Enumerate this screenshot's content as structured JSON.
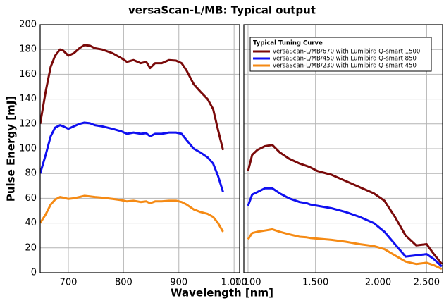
{
  "chart_data": {
    "type": "line",
    "title": "versaScan-L/MB: Typical output",
    "x_label": "Wavelength [nm]",
    "y_label": "Pulse Energy [mJ]",
    "ylim": [
      0,
      200
    ],
    "yticks": [
      0,
      20,
      40,
      60,
      80,
      100,
      120,
      140,
      160,
      180,
      200
    ],
    "grid": true,
    "legend": {
      "title": "Typical Tuning Curve",
      "position": "upper right"
    },
    "series": [
      {
        "name": "versaScan-L/MB/670 with Lumibird Q-smart 1500",
        "color": "#7a0a0a"
      },
      {
        "name": "versaScan-L/MB/450 with Lumibird Q-smart 850",
        "color": "#1010f0"
      },
      {
        "name": "versaScan-L/MB/230 with Lumibird Q-smart 450",
        "color": "#f58a14"
      }
    ],
    "panels": [
      {
        "xlim": [
          649,
          1010
        ],
        "log": false,
        "xticks": [
          700,
          800,
          900,
          {
            "value": 1000,
            "label": "1.000"
          }
        ],
        "lines": [
          {
            "x": [
              649,
              659,
              668,
              676,
              685,
              691,
              700,
              710,
              720,
              729,
              739,
              748,
              761,
              780,
              796,
              806,
              818,
              831,
              841,
              848,
              857,
              869,
              882,
              895,
              905,
              914,
              927,
              939,
              952,
              962,
              971,
              980
            ],
            "values": [
              120,
              146,
              166,
              175,
              180,
              179,
              175,
              177,
              181,
              183.5,
              183,
              181,
              180,
              177,
              173,
              170,
              171.5,
              169,
              170,
              165,
              169,
              169,
              171.5,
              171,
              169,
              163,
              152,
              146,
              140,
              132,
              115,
              99
            ]
          },
          {
            "x": [
              649,
              659,
              668,
              676,
              685,
              691,
              700,
              710,
              720,
              729,
              739,
              748,
              761,
              780,
              796,
              806,
              818,
              831,
              841,
              848,
              857,
              869,
              882,
              895,
              905,
              914,
              927,
              939,
              952,
              962,
              971,
              980
            ],
            "values": [
              80,
              95,
              110,
              117,
              119,
              118,
              116,
              118,
              120,
              121,
              120.5,
              119,
              118,
              116,
              114,
              112,
              113,
              112,
              112.5,
              110,
              112,
              112,
              113,
              113,
              112,
              107,
              100,
              97,
              93,
              88,
              78,
              65
            ]
          },
          {
            "x": [
              649,
              659,
              668,
              676,
              685,
              691,
              700,
              710,
              720,
              729,
              739,
              748,
              761,
              780,
              796,
              806,
              818,
              831,
              841,
              848,
              857,
              869,
              882,
              895,
              905,
              914,
              927,
              939,
              952,
              962,
              971,
              980
            ],
            "values": [
              40,
              47,
              55,
              59,
              61,
              60.5,
              59.5,
              60,
              61,
              62,
              61.5,
              61,
              60.5,
              59.5,
              58.5,
              57.5,
              58,
              57,
              57.5,
              56,
              57.5,
              57.5,
              58,
              58,
              57,
              55,
              51,
              49,
              47.5,
              45,
              40,
              33
            ]
          }
        ]
      },
      {
        "xlim": [
          1079,
          2690
        ],
        "log": true,
        "xticks": [
          {
            "value": 1100,
            "label": "1.100"
          },
          {
            "value": 1500,
            "label": "1.500"
          },
          {
            "value": 2000,
            "label": "2.000"
          },
          {
            "value": 2500,
            "label": "2.500"
          }
        ],
        "lines": [
          {
            "x": [
              1100,
              1121,
              1148,
              1188,
              1230,
              1273,
              1328,
              1394,
              1441,
              1464,
              1513,
              1614,
              1722,
              1838,
              1961,
              2059,
              2161,
              2269,
              2383,
              2500,
              2584,
              2680
            ],
            "values": [
              82,
              95,
              99,
              102,
              103,
              97,
              92,
              88,
              86,
              85,
              82,
              79,
              74,
              69,
              64,
              58,
              45,
              30,
              22,
              23,
              15,
              7
            ]
          },
          {
            "x": [
              1100,
              1121,
              1148,
              1188,
              1230,
              1273,
              1328,
              1394,
              1441,
              1464,
              1513,
              1614,
              1722,
              1838,
              1961,
              2059,
              2161,
              2269,
              2383,
              2500,
              2584,
              2680
            ],
            "values": [
              54,
              63,
              65,
              68,
              68,
              64,
              60,
              57,
              56,
              55,
              54,
              52,
              49,
              45,
              40,
              33,
              23,
              13,
              14,
              15,
              11,
              5
            ]
          },
          {
            "x": [
              1100,
              1121,
              1148,
              1188,
              1230,
              1273,
              1328,
              1394,
              1441,
              1464,
              1513,
              1614,
              1722,
              1838,
              1961,
              2059,
              2161,
              2269,
              2383,
              2500,
              2584,
              2680
            ],
            "values": [
              27,
              32,
              33,
              34,
              35,
              33,
              31,
              29,
              28.5,
              28,
              27.5,
              26.5,
              25,
              23,
              21.5,
              19,
              14,
              9,
              7,
              8,
              6,
              3
            ]
          }
        ]
      }
    ]
  }
}
